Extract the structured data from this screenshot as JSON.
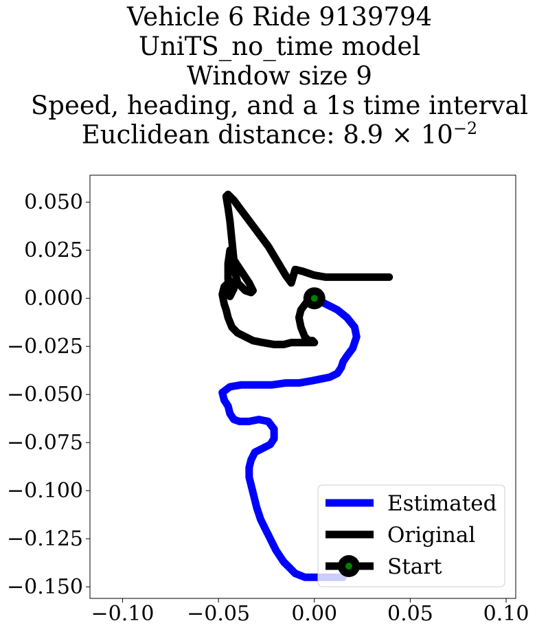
{
  "chart_data": {
    "type": "line",
    "title_lines": [
      "Vehicle 6 Ride 9139794",
      "UniTS_no_time model",
      "Window size 9",
      "Speed, heading, and a 1s time interval"
    ],
    "distance_label": "Euclidean distance: 8.9 × 10",
    "distance_exponent": "−2",
    "xlim": [
      -0.117,
      0.105
    ],
    "ylim": [
      -0.156,
      0.064
    ],
    "x_ticks": [
      -0.1,
      -0.05,
      0.0,
      0.05,
      0.1
    ],
    "x_tick_labels": [
      "−0.10",
      "−0.05",
      "0.00",
      "0.05",
      "0.10"
    ],
    "y_ticks": [
      0.05,
      0.025,
      0.0,
      -0.025,
      -0.05,
      -0.075,
      -0.1,
      -0.125,
      -0.15
    ],
    "y_tick_labels": [
      "0.050",
      "0.025",
      "0.000",
      "−0.025",
      "−0.050",
      "−0.075",
      "−0.100",
      "−0.125",
      "−0.150"
    ],
    "grid": false,
    "legend_position": "lower-right",
    "series": [
      {
        "name": "Estimated",
        "color": "#0000ff",
        "x": [
          0.0,
          0.006,
          0.012,
          0.017,
          0.021,
          0.022,
          0.02,
          0.017,
          0.015,
          0.014,
          0.012,
          0.008,
          0.003,
          -0.002,
          -0.008,
          -0.015,
          -0.022,
          -0.03,
          -0.038,
          -0.044,
          -0.048,
          -0.047,
          -0.045,
          -0.044,
          -0.042,
          -0.039,
          -0.034,
          -0.029,
          -0.024,
          -0.021,
          -0.021,
          -0.023,
          -0.027,
          -0.031,
          -0.033,
          -0.034,
          -0.034,
          -0.033,
          -0.032,
          -0.031,
          -0.03,
          -0.029,
          -0.028,
          -0.026,
          -0.024,
          -0.022,
          -0.02,
          -0.018,
          -0.016,
          -0.013,
          -0.01,
          -0.005,
          0.0,
          0.006,
          0.011,
          0.015
        ],
        "y": [
          0.0,
          -0.003,
          -0.006,
          -0.01,
          -0.015,
          -0.02,
          -0.026,
          -0.03,
          -0.033,
          -0.036,
          -0.039,
          -0.041,
          -0.042,
          -0.043,
          -0.044,
          -0.044,
          -0.045,
          -0.045,
          -0.045,
          -0.046,
          -0.049,
          -0.053,
          -0.056,
          -0.06,
          -0.063,
          -0.064,
          -0.064,
          -0.063,
          -0.064,
          -0.068,
          -0.073,
          -0.076,
          -0.078,
          -0.08,
          -0.084,
          -0.088,
          -0.093,
          -0.097,
          -0.101,
          -0.105,
          -0.109,
          -0.112,
          -0.115,
          -0.119,
          -0.123,
          -0.127,
          -0.131,
          -0.134,
          -0.137,
          -0.14,
          -0.143,
          -0.145,
          -0.145,
          -0.145,
          -0.145,
          -0.145
        ]
      },
      {
        "name": "Original",
        "color": "#000000",
        "x": [
          0.0,
          -0.004,
          -0.007,
          -0.008,
          -0.007,
          -0.005,
          -0.003,
          -0.001,
          0.0,
          -0.004,
          -0.008,
          -0.012,
          -0.016,
          -0.021,
          -0.027,
          -0.032,
          -0.036,
          -0.04,
          -0.043,
          -0.045,
          -0.046,
          -0.047,
          -0.048,
          -0.047,
          -0.044,
          -0.042,
          -0.044,
          -0.045,
          -0.045,
          -0.044,
          -0.042,
          -0.038,
          -0.034,
          -0.032,
          -0.033,
          -0.036,
          -0.038,
          -0.04,
          -0.041,
          -0.042,
          -0.043,
          -0.044,
          -0.045,
          -0.046,
          -0.045,
          -0.042,
          -0.039,
          -0.036,
          -0.033,
          -0.03,
          -0.027,
          -0.024,
          -0.021,
          -0.018,
          -0.015,
          -0.012,
          -0.01,
          -0.006,
          0.0,
          0.006,
          0.012,
          0.018,
          0.024,
          0.03,
          0.035,
          0.039
        ],
        "y": [
          0.0,
          -0.002,
          -0.006,
          -0.01,
          -0.015,
          -0.02,
          -0.022,
          -0.022,
          -0.023,
          -0.023,
          -0.023,
          -0.023,
          -0.024,
          -0.024,
          -0.023,
          -0.022,
          -0.02,
          -0.018,
          -0.015,
          -0.01,
          -0.006,
          -0.003,
          0.002,
          0.006,
          0.009,
          0.005,
          0.001,
          0.01,
          0.018,
          0.025,
          0.02,
          0.014,
          0.008,
          0.004,
          0.003,
          0.004,
          0.006,
          0.008,
          0.012,
          0.02,
          0.03,
          0.04,
          0.047,
          0.053,
          0.054,
          0.051,
          0.047,
          0.043,
          0.039,
          0.035,
          0.031,
          0.027,
          0.022,
          0.017,
          0.012,
          0.008,
          0.015,
          0.014,
          0.012,
          0.011,
          0.011,
          0.011,
          0.011,
          0.011,
          0.011,
          0.011
        ]
      }
    ],
    "start_point": {
      "name": "Start",
      "x": 0.0,
      "y": 0.0,
      "outer_color": "#000000",
      "inner_color": "#008000"
    }
  }
}
